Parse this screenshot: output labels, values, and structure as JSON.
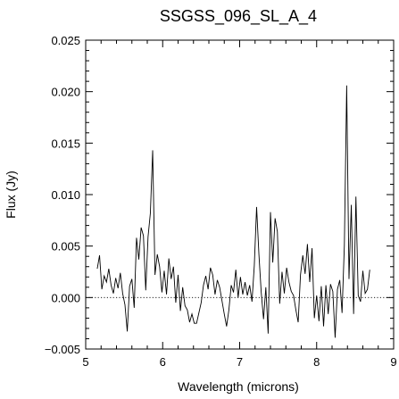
{
  "chart_data": {
    "type": "line",
    "title": "SSGSS_096_SL_A_4",
    "xlabel": "Wavelength (microns)",
    "ylabel": "Flux (Jy)",
    "xlim": [
      5,
      9
    ],
    "ylim": [
      -0.005,
      0.025
    ],
    "xticks": [
      5,
      6,
      7,
      8,
      9
    ],
    "xtick_labels": [
      "5",
      "6",
      "7",
      "8",
      "9"
    ],
    "yticks": [
      -0.005,
      0.0,
      0.005,
      0.01,
      0.015,
      0.02,
      0.025
    ],
    "ytick_labels": [
      "−0.005",
      "0.000",
      "0.005",
      "0.010",
      "0.015",
      "0.020",
      "0.025"
    ],
    "zero_line": "dotted",
    "grid": false,
    "legend": "none",
    "line_color": "#000000",
    "series": [
      {
        "x": [
          5.15,
          5.18,
          5.21,
          5.24,
          5.27,
          5.3,
          5.33,
          5.36,
          5.39,
          5.42,
          5.45,
          5.48,
          5.51,
          5.54,
          5.57,
          5.6,
          5.63,
          5.66,
          5.69,
          5.72,
          5.75,
          5.78,
          5.81,
          5.84,
          5.87,
          5.9,
          5.93,
          5.96,
          5.99,
          6.02,
          6.05,
          6.08,
          6.11,
          6.14,
          6.17,
          6.2,
          6.23,
          6.26,
          6.29,
          6.32,
          6.35,
          6.38,
          6.41,
          6.44,
          6.47,
          6.5,
          6.53,
          6.56,
          6.59,
          6.62,
          6.65,
          6.68,
          6.71,
          6.74,
          6.77,
          6.8,
          6.83,
          6.86,
          6.89,
          6.92,
          6.95,
          6.98,
          7.01,
          7.04,
          7.07,
          7.1,
          7.13,
          7.16,
          7.19,
          7.22,
          7.25,
          7.28,
          7.31,
          7.34,
          7.37,
          7.4,
          7.43,
          7.46,
          7.49,
          7.52,
          7.55,
          7.58,
          7.61,
          7.64,
          7.67,
          7.7,
          7.73,
          7.76,
          7.79,
          7.82,
          7.85,
          7.88,
          7.91,
          7.94,
          7.97,
          8.0,
          8.03,
          8.06,
          8.09,
          8.12,
          8.15,
          8.18,
          8.21,
          8.24,
          8.27,
          8.3,
          8.33,
          8.36,
          8.39,
          8.42,
          8.45,
          8.48,
          8.51,
          8.54,
          8.57,
          8.6,
          8.63,
          8.66,
          8.69
        ],
        "y": [
          0.0028,
          0.0041,
          0.0008,
          0.0021,
          0.0015,
          0.0028,
          0.0012,
          0.0004,
          0.0019,
          0.0009,
          0.0024,
          0.0004,
          -0.0007,
          -0.0033,
          0.0011,
          0.0018,
          -0.001,
          0.0058,
          0.0037,
          0.0068,
          0.006,
          0.0007,
          0.0059,
          0.0082,
          0.0143,
          0.0022,
          0.0042,
          0.003,
          0.0005,
          0.0026,
          0.0003,
          0.0038,
          0.0018,
          0.003,
          -0.0005,
          0.0022,
          -0.0013,
          0.001,
          -0.0008,
          -0.0012,
          -0.0024,
          -0.0016,
          -0.0025,
          -0.0025,
          -0.0015,
          -0.0005,
          0.0012,
          0.0021,
          0.0008,
          0.0029,
          0.0022,
          0.0003,
          0.0017,
          0.001,
          -0.0003,
          -0.0016,
          -0.0028,
          -0.0012,
          0.0012,
          0.0005,
          0.0027,
          0.0,
          0.002,
          0.0003,
          0.0015,
          0.0002,
          0.0012,
          -0.0004,
          0.0031,
          0.0088,
          0.0042,
          0.0005,
          -0.0021,
          0.001,
          -0.0035,
          0.0083,
          0.0034,
          0.0077,
          0.0064,
          -0.0006,
          0.0025,
          0.0004,
          0.0029,
          0.0015,
          0.0006,
          0.0002,
          -0.0012,
          -0.0024,
          0.0022,
          0.0041,
          0.0023,
          0.0052,
          0.0015,
          0.0048,
          -0.002,
          0.0002,
          -0.0023,
          0.0011,
          -0.0028,
          0.0012,
          -0.0016,
          0.0013,
          0.0006,
          -0.0039,
          0.0008,
          0.0017,
          -0.0015,
          0.0051,
          0.0206,
          0.0018,
          0.009,
          -0.0016,
          0.0098,
          0.0002,
          -0.0004,
          0.0026,
          0.0004,
          0.0008,
          0.0027
        ]
      }
    ]
  }
}
